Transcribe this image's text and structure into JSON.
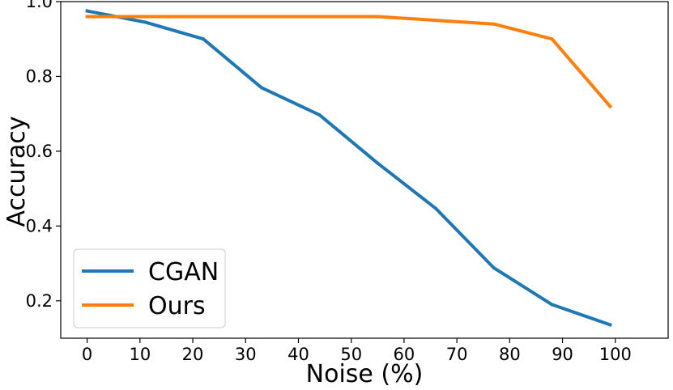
{
  "chart_data": {
    "type": "line",
    "title": "",
    "xlabel": "Noise (%)",
    "ylabel": "Accuracy",
    "xlim": [
      -5,
      110
    ],
    "ylim": [
      0.1,
      1.0
    ],
    "xticks": [
      0,
      10,
      20,
      30,
      40,
      50,
      60,
      70,
      80,
      90,
      100
    ],
    "xtick_labels": [
      "0",
      "10",
      "20",
      "30",
      "40",
      "50",
      "60",
      "70",
      "80",
      "90",
      "100"
    ],
    "yticks": [
      0.2,
      0.4,
      0.6,
      0.8,
      1.0
    ],
    "ytick_labels": [
      "0.2",
      "0.4",
      "0.6",
      "0.8",
      "1.0"
    ],
    "grid": false,
    "legend_position": "lower-left",
    "x": [
      0,
      11,
      22,
      33,
      44,
      55,
      66,
      77,
      88,
      99
    ],
    "series": [
      {
        "name": "CGAN",
        "color": "#1f77b4",
        "values": [
          0.975,
          0.945,
          0.9,
          0.77,
          0.697,
          0.568,
          0.447,
          0.288,
          0.19,
          0.136
        ]
      },
      {
        "name": "Ours",
        "color": "#ff7f0e",
        "values": [
          0.96,
          0.96,
          0.96,
          0.96,
          0.96,
          0.96,
          0.95,
          0.94,
          0.9,
          0.72
        ]
      }
    ]
  }
}
